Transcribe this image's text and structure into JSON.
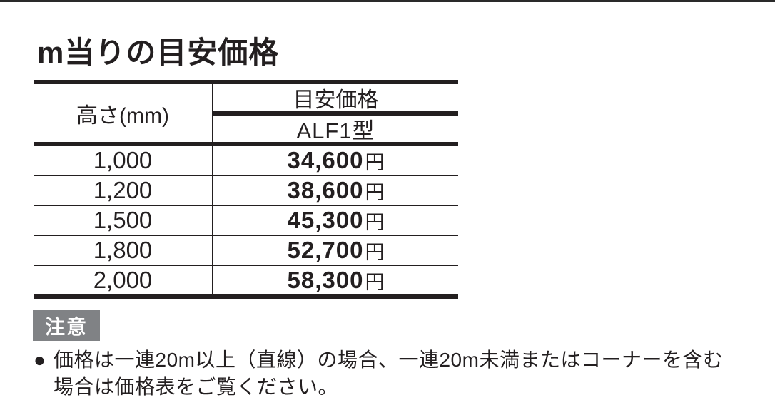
{
  "page": {
    "title": "m当りの目安価格"
  },
  "table": {
    "col1_header": "高さ(mm)",
    "col2_header_top": "目安価格",
    "col2_header_sub": "ALF1型",
    "rows": [
      {
        "height": "1,000",
        "price": "34,600",
        "unit": "円"
      },
      {
        "height": "1,200",
        "price": "38,600",
        "unit": "円"
      },
      {
        "height": "1,500",
        "price": "45,300",
        "unit": "円"
      },
      {
        "height": "1,800",
        "price": "52,700",
        "unit": "円"
      },
      {
        "height": "2,000",
        "price": "58,300",
        "unit": "円"
      }
    ]
  },
  "notice": {
    "badge": "注意",
    "bullet": "●",
    "lines": [
      "価格は一連20m以上（直線）の場合、一連20m未満またはコーナーを含む",
      "場合は価格表をご覧ください。"
    ]
  },
  "colors": {
    "text": "#231f20",
    "badge_bg": "#808285",
    "top_rule": "#2a2a2a"
  }
}
